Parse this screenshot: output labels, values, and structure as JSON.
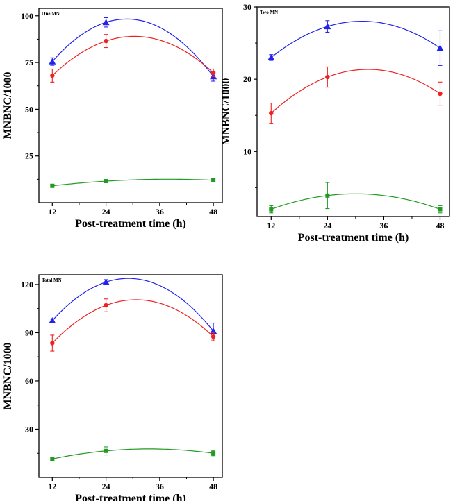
{
  "chart_data": [
    {
      "type": "scatter",
      "title": "One MN",
      "xlabel": "Post-treatment time (h)",
      "ylabel": "MNBNC/1000",
      "xlim": [
        9,
        50
      ],
      "ylim": [
        0,
        104
      ],
      "xticks": [
        12,
        24,
        36,
        48
      ],
      "yticks": [
        25,
        50,
        75,
        100
      ],
      "series": [
        {
          "color": "#2222ee",
          "marker": "triangle",
          "x": [
            12,
            24,
            48
          ],
          "y": [
            75.5,
            96.5,
            67.5
          ],
          "err": [
            2,
            2.5,
            2.5
          ]
        },
        {
          "color": "#ee2222",
          "marker": "circle",
          "x": [
            12,
            24,
            48
          ],
          "y": [
            68,
            86.5,
            69.5
          ],
          "err": [
            3.5,
            3.5,
            2
          ]
        },
        {
          "color": "#229922",
          "marker": "square",
          "x": [
            12,
            24,
            48
          ],
          "y": [
            9,
            11.5,
            12
          ],
          "err": [
            0.8,
            0.8,
            0.8
          ]
        }
      ]
    },
    {
      "type": "scatter",
      "title": "Two MN",
      "xlabel": "Post-treatment time (h)",
      "ylabel": "MNBNC/1000",
      "xlim": [
        9,
        50
      ],
      "ylim": [
        1,
        30
      ],
      "xticks": [
        12,
        24,
        36,
        48
      ],
      "yticks": [
        10,
        20,
        30
      ],
      "series": [
        {
          "color": "#2222ee",
          "marker": "triangle",
          "x": [
            12,
            24,
            48
          ],
          "y": [
            23,
            27.3,
            24.3
          ],
          "err": [
            0.4,
            0.8,
            2.4
          ]
        },
        {
          "color": "#ee2222",
          "marker": "circle",
          "x": [
            12,
            24,
            48
          ],
          "y": [
            15.3,
            20.3,
            18
          ],
          "err": [
            1.4,
            1.4,
            1.6
          ]
        },
        {
          "color": "#229922",
          "marker": "square",
          "x": [
            12,
            24,
            48
          ],
          "y": [
            2,
            3.9,
            2
          ],
          "err": [
            0.5,
            1.8,
            0.5
          ]
        }
      ]
    },
    {
      "type": "scatter",
      "title": "Total MN",
      "xlabel": "Post-treatment time (h)",
      "ylabel": "MNBNC/1000",
      "xlim": [
        9,
        50
      ],
      "ylim": [
        0,
        126
      ],
      "xticks": [
        12,
        24,
        36,
        48
      ],
      "yticks": [
        30,
        60,
        90,
        120
      ],
      "series": [
        {
          "color": "#2222ee",
          "marker": "triangle",
          "x": [
            12,
            24,
            48
          ],
          "y": [
            97.5,
            121.5,
            91
          ],
          "err": [
            1,
            1.5,
            5
          ]
        },
        {
          "color": "#ee2222",
          "marker": "circle",
          "x": [
            12,
            24,
            48
          ],
          "y": [
            83.5,
            107,
            87.5
          ],
          "err": [
            5,
            4,
            2.5
          ]
        },
        {
          "color": "#229922",
          "marker": "square",
          "x": [
            12,
            24,
            48
          ],
          "y": [
            11.5,
            16.5,
            15
          ],
          "err": [
            0.8,
            2.5,
            1.5
          ]
        }
      ]
    }
  ]
}
